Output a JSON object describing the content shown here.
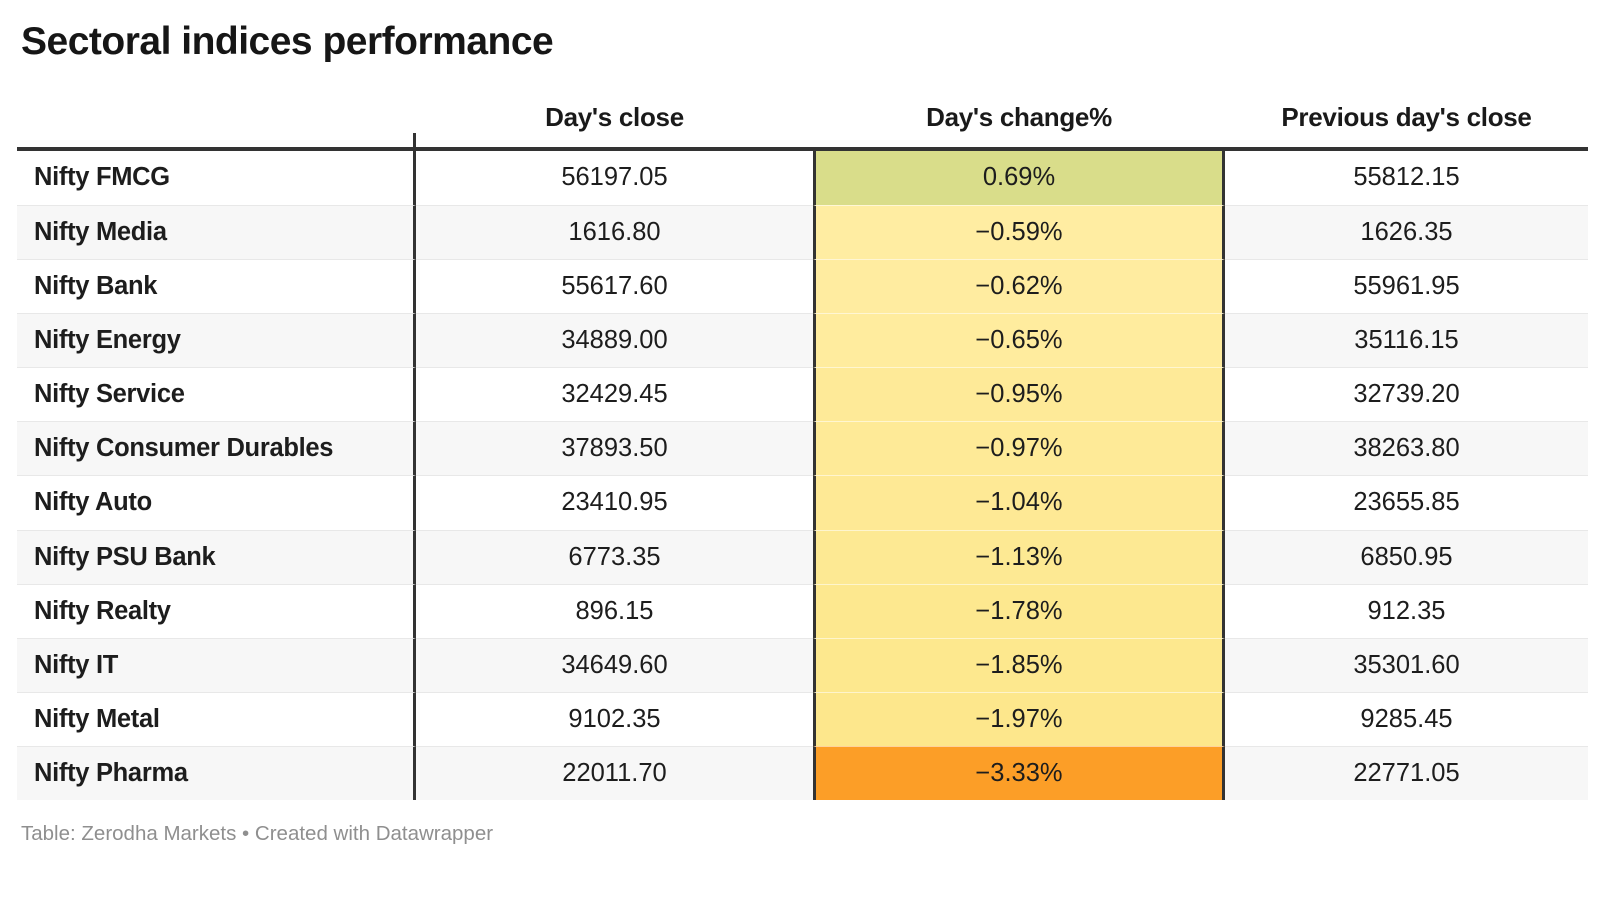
{
  "title": "Sectoral indices performance",
  "chart_data": {
    "type": "table",
    "title": "Sectoral indices performance",
    "columns": [
      "",
      "Day's close",
      "Day's change%",
      "Previous day's close"
    ],
    "rows": [
      {
        "name": "Nifty FMCG",
        "close": "56197.05",
        "change": "0.69%",
        "prev": "55812.15",
        "change_bg": "#d9dd8a"
      },
      {
        "name": "Nifty Media",
        "close": "1616.80",
        "change": "−0.59%",
        "prev": "1626.35",
        "change_bg": "#ffeda2"
      },
      {
        "name": "Nifty Bank",
        "close": "55617.60",
        "change": "−0.62%",
        "prev": "55961.95",
        "change_bg": "#ffeca0"
      },
      {
        "name": "Nifty Energy",
        "close": "34889.00",
        "change": "−0.65%",
        "prev": "35116.15",
        "change_bg": "#ffec9e"
      },
      {
        "name": "Nifty Service",
        "close": "32429.45",
        "change": "−0.95%",
        "prev": "32739.20",
        "change_bg": "#feea98"
      },
      {
        "name": "Nifty Consumer Durables",
        "close": "37893.50",
        "change": "−0.97%",
        "prev": "38263.80",
        "change_bg": "#feea97"
      },
      {
        "name": "Nifty Auto",
        "close": "23410.95",
        "change": "−1.04%",
        "prev": "23655.85",
        "change_bg": "#fee995"
      },
      {
        "name": "Nifty PSU Bank",
        "close": "6773.35",
        "change": "−1.13%",
        "prev": "6850.95",
        "change_bg": "#fde993"
      },
      {
        "name": "Nifty Realty",
        "close": "896.15",
        "change": "−1.78%",
        "prev": "912.35",
        "change_bg": "#fde88f"
      },
      {
        "name": "Nifty IT",
        "close": "34649.60",
        "change": "−1.85%",
        "prev": "35301.60",
        "change_bg": "#fde88e"
      },
      {
        "name": "Nifty Metal",
        "close": "9102.35",
        "change": "−1.97%",
        "prev": "9285.45",
        "change_bg": "#fde78c"
      },
      {
        "name": "Nifty Pharma",
        "close": "22011.70",
        "change": "−3.33%",
        "prev": "22771.05",
        "change_bg": "#fc9e27"
      }
    ]
  },
  "footer": "Table: Zerodha Markets • Created with Datawrapper",
  "colors": {
    "header_border": "#333333",
    "alt_row_bg": "#f7f7f7",
    "row_separator": "#e8e8e8",
    "positive_cell": "#d9dd8a",
    "negative_mild_cell": "#ffec9e",
    "negative_strong_cell": "#fc9e27"
  }
}
